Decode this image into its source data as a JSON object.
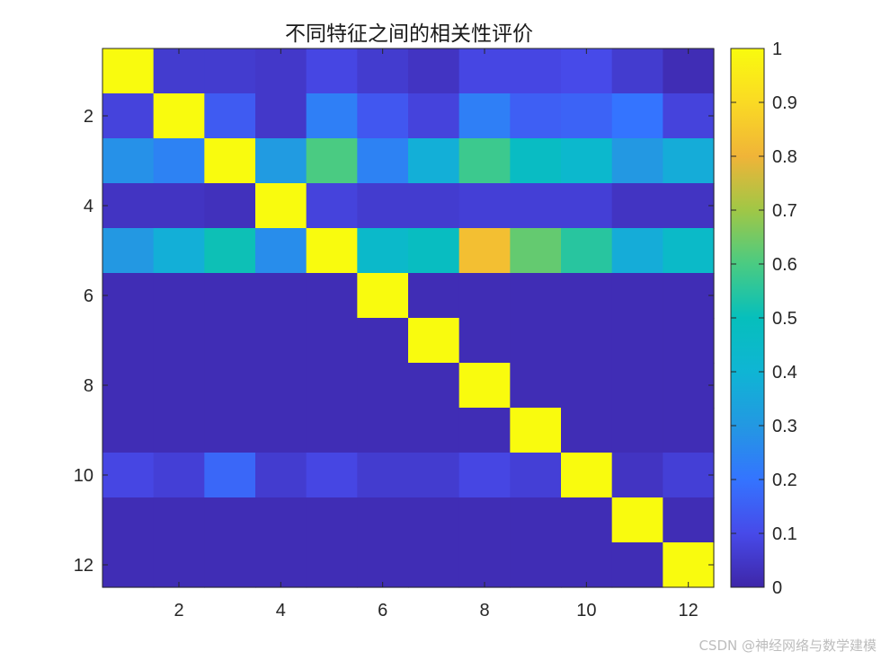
{
  "chart_data": {
    "type": "heatmap",
    "title": "不同特征之间的相关性评价",
    "xlabel": "",
    "ylabel": "",
    "rows": 12,
    "cols": 12,
    "x_ticks": [
      2,
      4,
      6,
      8,
      10,
      12
    ],
    "y_ticks": [
      2,
      4,
      6,
      8,
      10,
      12
    ],
    "colorbar": {
      "min": 0,
      "max": 1,
      "ticks": [
        0,
        0.1,
        0.2,
        0.3,
        0.4,
        0.5,
        0.6,
        0.7,
        0.8,
        0.9,
        1
      ],
      "tick_labels": [
        "0",
        "0.1",
        "0.2",
        "0.3",
        "0.4",
        "0.5",
        "0.6",
        "0.7",
        "0.8",
        "0.9",
        "1"
      ],
      "colormap": "parula",
      "location": "right"
    },
    "values": [
      [
        1.0,
        0.06,
        0.06,
        0.05,
        0.09,
        0.06,
        0.04,
        0.09,
        0.09,
        0.1,
        0.06,
        0.02
      ],
      [
        0.08,
        1.0,
        0.14,
        0.05,
        0.23,
        0.13,
        0.08,
        0.23,
        0.15,
        0.16,
        0.2,
        0.08
      ],
      [
        0.28,
        0.24,
        1.0,
        0.31,
        0.6,
        0.24,
        0.38,
        0.58,
        0.47,
        0.43,
        0.3,
        0.37
      ],
      [
        0.04,
        0.04,
        0.03,
        1.0,
        0.08,
        0.06,
        0.06,
        0.07,
        0.07,
        0.07,
        0.04,
        0.04
      ],
      [
        0.3,
        0.38,
        0.51,
        0.27,
        1.0,
        0.44,
        0.48,
        0.83,
        0.63,
        0.55,
        0.37,
        0.45
      ],
      [
        0.02,
        0.02,
        0.02,
        0.02,
        0.02,
        1.0,
        0.02,
        0.02,
        0.02,
        0.02,
        0.02,
        0.02
      ],
      [
        0.02,
        0.02,
        0.02,
        0.02,
        0.02,
        0.02,
        1.0,
        0.02,
        0.02,
        0.02,
        0.02,
        0.02
      ],
      [
        0.02,
        0.02,
        0.02,
        0.02,
        0.02,
        0.02,
        0.02,
        1.0,
        0.02,
        0.02,
        0.02,
        0.02
      ],
      [
        0.02,
        0.02,
        0.02,
        0.02,
        0.02,
        0.02,
        0.02,
        0.02,
        1.0,
        0.02,
        0.02,
        0.02
      ],
      [
        0.09,
        0.07,
        0.17,
        0.06,
        0.09,
        0.06,
        0.06,
        0.09,
        0.07,
        1.0,
        0.04,
        0.07
      ],
      [
        0.02,
        0.02,
        0.02,
        0.02,
        0.02,
        0.02,
        0.02,
        0.02,
        0.02,
        0.02,
        1.0,
        0.02
      ],
      [
        0.02,
        0.02,
        0.02,
        0.02,
        0.02,
        0.02,
        0.02,
        0.02,
        0.02,
        0.02,
        0.02,
        1.0
      ]
    ]
  },
  "watermark": "CSDN @神经网络与数学建模"
}
